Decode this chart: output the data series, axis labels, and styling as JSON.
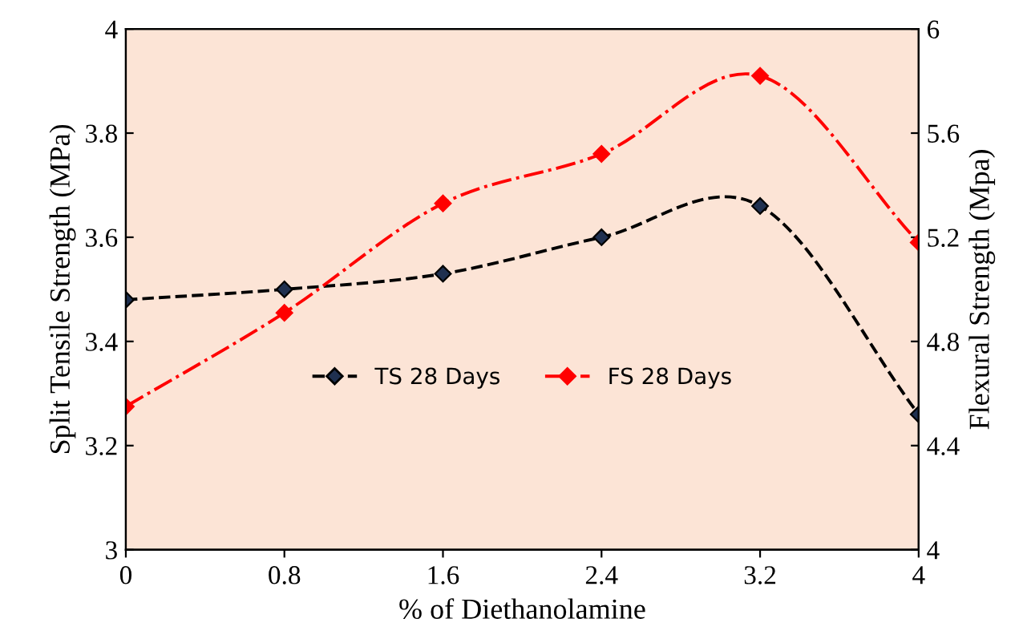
{
  "chart_data": {
    "type": "line",
    "xlabel": "% of Diethanolamine",
    "ylabel": "Split Tensile Strength (MPa)",
    "y2label": "Flexural Strength (Mpa)",
    "x": [
      0,
      0.8,
      1.6,
      2.4,
      3.2,
      4
    ],
    "series": [
      {
        "name": "TS 28 Days",
        "color": "#000000",
        "values": [
          3.48,
          3.5,
          3.53,
          3.6,
          3.66,
          3.26
        ],
        "line_style": "dashed"
      },
      {
        "name": "FS 28 Days",
        "color": "#ff0000",
        "values": [
          4.55,
          4.91,
          5.33,
          5.52,
          5.82,
          5.18
        ],
        "axis": "y2",
        "line_style": "dashdot"
      }
    ],
    "xlim": [
      0,
      4
    ],
    "xticks": [
      0,
      0.8,
      1.6,
      2.4,
      3.2,
      4
    ],
    "ylim": [
      3,
      4
    ],
    "yticks": [
      3,
      3.2,
      3.4,
      3.6,
      3.8,
      4
    ],
    "y2lim": [
      4,
      6
    ],
    "y2ticks": [
      4,
      4.4,
      4.8,
      5.2,
      5.6,
      6
    ],
    "marker": "diamond",
    "legend": "center",
    "grid": false
  }
}
